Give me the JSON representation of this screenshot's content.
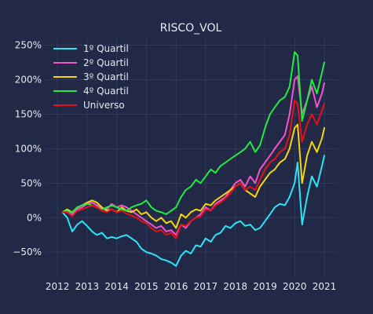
{
  "chart_data": {
    "type": "line",
    "title": "RISCO_VOL",
    "xlabel": "",
    "ylabel": "",
    "x_ticks": [
      "2012",
      "2013",
      "2014",
      "2015",
      "2016",
      "2017",
      "2018",
      "2019",
      "2020",
      "2021"
    ],
    "y_ticks": [
      "−50%",
      "0%",
      "50%",
      "100%",
      "150%",
      "200%",
      "250%"
    ],
    "xlim": [
      2011.6,
      2021.45
    ],
    "ylim": [
      -85,
      262
    ],
    "grid": true,
    "legend_position": "top-left",
    "background": "#212946",
    "series": [
      {
        "name": "1º Quartil",
        "color": "#2de3f5",
        "x": [
          2012.17,
          2012.33,
          2012.5,
          2012.67,
          2012.83,
          2013.0,
          2013.17,
          2013.33,
          2013.5,
          2013.67,
          2013.83,
          2014.0,
          2014.17,
          2014.33,
          2014.5,
          2014.67,
          2014.83,
          2015.0,
          2015.17,
          2015.33,
          2015.5,
          2015.67,
          2015.83,
          2016.0,
          2016.17,
          2016.33,
          2016.5,
          2016.67,
          2016.83,
          2017.0,
          2017.17,
          2017.33,
          2017.5,
          2017.67,
          2017.83,
          2018.0,
          2018.17,
          2018.33,
          2018.5,
          2018.67,
          2018.83,
          2019.0,
          2019.17,
          2019.33,
          2019.5,
          2019.67,
          2019.83,
          2020.0,
          2020.1,
          2020.25,
          2020.42,
          2020.58,
          2020.75,
          2020.92,
          2021.0
        ],
        "values": [
          8,
          0,
          -20,
          -10,
          -5,
          -12,
          -20,
          -25,
          -22,
          -30,
          -28,
          -30,
          -27,
          -25,
          -30,
          -35,
          -45,
          -50,
          -52,
          -55,
          -60,
          -62,
          -65,
          -70,
          -55,
          -48,
          -52,
          -40,
          -42,
          -30,
          -35,
          -25,
          -22,
          -12,
          -15,
          -8,
          -5,
          -12,
          -10,
          -18,
          -15,
          -5,
          5,
          15,
          20,
          18,
          30,
          50,
          80,
          -10,
          30,
          60,
          45,
          75,
          90
        ]
      },
      {
        "name": "2º Quartil",
        "color": "#f254c9",
        "x": [
          2012.17,
          2012.33,
          2012.5,
          2012.67,
          2012.83,
          2013.0,
          2013.17,
          2013.33,
          2013.5,
          2013.67,
          2013.83,
          2014.0,
          2014.17,
          2014.33,
          2014.5,
          2014.67,
          2014.83,
          2015.0,
          2015.17,
          2015.33,
          2015.5,
          2015.67,
          2015.83,
          2016.0,
          2016.17,
          2016.33,
          2016.5,
          2016.67,
          2016.83,
          2017.0,
          2017.17,
          2017.33,
          2017.5,
          2017.67,
          2017.83,
          2018.0,
          2018.17,
          2018.33,
          2018.5,
          2018.67,
          2018.83,
          2019.0,
          2019.17,
          2019.33,
          2019.5,
          2019.67,
          2019.83,
          2020.0,
          2020.1,
          2020.25,
          2020.42,
          2020.58,
          2020.75,
          2020.92,
          2021.0
        ],
        "values": [
          8,
          10,
          5,
          12,
          15,
          20,
          22,
          18,
          14,
          12,
          20,
          15,
          18,
          15,
          10,
          5,
          0,
          -5,
          -10,
          -15,
          -12,
          -20,
          -18,
          -25,
          -10,
          -15,
          -5,
          0,
          5,
          15,
          10,
          20,
          25,
          30,
          40,
          50,
          55,
          45,
          60,
          50,
          70,
          80,
          90,
          100,
          110,
          120,
          150,
          200,
          205,
          150,
          170,
          190,
          160,
          180,
          195
        ]
      },
      {
        "name": "3º Quartil",
        "color": "#f5d60c",
        "x": [
          2012.17,
          2012.33,
          2012.5,
          2012.67,
          2012.83,
          2013.0,
          2013.17,
          2013.33,
          2013.5,
          2013.67,
          2013.83,
          2014.0,
          2014.17,
          2014.33,
          2014.5,
          2014.67,
          2014.83,
          2015.0,
          2015.17,
          2015.33,
          2015.5,
          2015.67,
          2015.83,
          2016.0,
          2016.17,
          2016.33,
          2016.5,
          2016.67,
          2016.83,
          2017.0,
          2017.17,
          2017.33,
          2017.5,
          2017.67,
          2017.83,
          2018.0,
          2018.17,
          2018.33,
          2018.5,
          2018.67,
          2018.83,
          2019.0,
          2019.17,
          2019.33,
          2019.5,
          2019.67,
          2019.83,
          2020.0,
          2020.1,
          2020.25,
          2020.42,
          2020.58,
          2020.75,
          2020.92,
          2021.0
        ],
        "values": [
          8,
          12,
          8,
          15,
          18,
          22,
          25,
          22,
          15,
          10,
          12,
          8,
          15,
          10,
          8,
          12,
          5,
          8,
          0,
          -5,
          0,
          -8,
          -5,
          -15,
          5,
          0,
          8,
          12,
          10,
          20,
          18,
          25,
          30,
          35,
          40,
          45,
          50,
          40,
          35,
          30,
          45,
          55,
          65,
          70,
          80,
          85,
          100,
          130,
          135,
          50,
          90,
          110,
          95,
          115,
          130
        ]
      },
      {
        "name": "4º Quartil",
        "color": "#1fec3f",
        "x": [
          2012.17,
          2012.33,
          2012.5,
          2012.67,
          2012.83,
          2013.0,
          2013.17,
          2013.33,
          2013.5,
          2013.67,
          2013.83,
          2014.0,
          2014.17,
          2014.33,
          2014.5,
          2014.67,
          2014.83,
          2015.0,
          2015.17,
          2015.33,
          2015.5,
          2015.67,
          2015.83,
          2016.0,
          2016.17,
          2016.33,
          2016.5,
          2016.67,
          2016.83,
          2017.0,
          2017.17,
          2017.33,
          2017.5,
          2017.67,
          2017.83,
          2018.0,
          2018.17,
          2018.33,
          2018.5,
          2018.67,
          2018.83,
          2019.0,
          2019.17,
          2019.33,
          2019.5,
          2019.67,
          2019.83,
          2020.0,
          2020.1,
          2020.25,
          2020.42,
          2020.58,
          2020.75,
          2020.92,
          2021.0
        ],
        "values": [
          8,
          10,
          8,
          15,
          18,
          20,
          18,
          15,
          12,
          15,
          18,
          15,
          12,
          10,
          15,
          18,
          20,
          25,
          15,
          10,
          8,
          5,
          10,
          15,
          30,
          40,
          45,
          55,
          50,
          60,
          70,
          65,
          75,
          80,
          85,
          90,
          95,
          100,
          110,
          95,
          105,
          130,
          150,
          160,
          170,
          175,
          190,
          240,
          235,
          140,
          170,
          200,
          180,
          210,
          225
        ]
      },
      {
        "name": "Universo",
        "color": "#e8101a",
        "x": [
          2012.17,
          2012.33,
          2012.5,
          2012.67,
          2012.83,
          2013.0,
          2013.17,
          2013.33,
          2013.5,
          2013.67,
          2013.83,
          2014.0,
          2014.17,
          2014.33,
          2014.5,
          2014.67,
          2014.83,
          2015.0,
          2015.17,
          2015.33,
          2015.5,
          2015.67,
          2015.83,
          2016.0,
          2016.17,
          2016.33,
          2016.5,
          2016.67,
          2016.83,
          2017.0,
          2017.17,
          2017.33,
          2017.5,
          2017.67,
          2017.83,
          2018.0,
          2018.17,
          2018.33,
          2018.5,
          2018.67,
          2018.83,
          2019.0,
          2019.17,
          2019.33,
          2019.5,
          2019.67,
          2019.83,
          2020.0,
          2020.1,
          2020.25,
          2020.42,
          2020.58,
          2020.75,
          2020.92,
          2021.0
        ],
        "values": [
          8,
          8,
          2,
          10,
          12,
          15,
          18,
          15,
          10,
          8,
          12,
          8,
          10,
          6,
          3,
          0,
          -5,
          -8,
          -15,
          -20,
          -18,
          -25,
          -22,
          -30,
          -10,
          -12,
          -5,
          0,
          2,
          12,
          10,
          18,
          22,
          28,
          35,
          45,
          50,
          40,
          45,
          40,
          55,
          70,
          80,
          85,
          95,
          100,
          120,
          170,
          165,
          110,
          135,
          150,
          135,
          155,
          165
        ]
      }
    ]
  }
}
